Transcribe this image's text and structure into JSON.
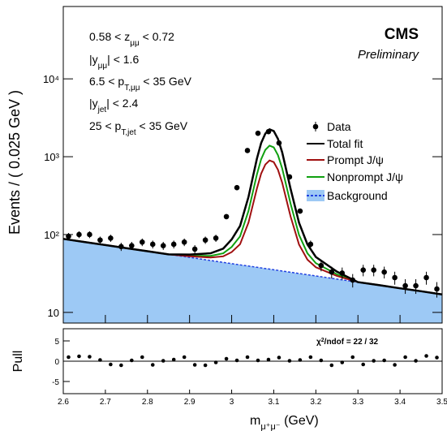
{
  "chart_data": {
    "type": "line",
    "log_y": true,
    "y_title": "Events / ( 0.025 GeV )",
    "x_title": [
      {
        "t": "m"
      },
      {
        "sub": "μ⁺μ⁻"
      },
      {
        "t": " (GeV)"
      }
    ],
    "experiment": "CMS",
    "status": "Preliminary",
    "annotations": [
      [
        {
          "t": "0.58 < z"
        },
        {
          "sub": "μμ"
        },
        {
          "t": " < 0.72"
        }
      ],
      [
        {
          "t": "|y"
        },
        {
          "sub": "μμ"
        },
        {
          "t": "| < 1.6"
        }
      ],
      [
        {
          "t": "6.5 < p"
        },
        {
          "sub": "T,μμ"
        },
        {
          "t": " < 35 GeV"
        }
      ],
      [
        {
          "t": "|y"
        },
        {
          "sub": "jet"
        },
        {
          "t": "| < 2.4"
        }
      ],
      [
        {
          "t": "25 < p"
        },
        {
          "sub": "T,jet"
        },
        {
          "t": " < 35 GeV"
        }
      ]
    ],
    "xlim": [
      2.6,
      3.5
    ],
    "xticks": [
      2.6,
      2.7,
      2.8,
      2.9,
      3,
      3.1,
      3.2,
      3.3,
      3.4,
      3.5
    ],
    "ylim": [
      7.3,
      85000
    ],
    "yticks": [
      {
        "value": 10,
        "label": "10"
      },
      {
        "value": 100,
        "label": "10²"
      },
      {
        "value": 1000,
        "label": "10³"
      },
      {
        "value": 10000,
        "label": "10⁴"
      }
    ],
    "data": {
      "name": "Data",
      "color": "#000000",
      "x": [
        2.6125,
        2.6375,
        2.6625,
        2.6875,
        2.7125,
        2.7375,
        2.7625,
        2.7875,
        2.8125,
        2.8375,
        2.8625,
        2.8875,
        2.9125,
        2.9375,
        2.9625,
        2.9875,
        3.0125,
        3.0375,
        3.0625,
        3.0875,
        3.1125,
        3.1375,
        3.1625,
        3.1875,
        3.2125,
        3.2375,
        3.2625,
        3.2875,
        3.3125,
        3.3375,
        3.3625,
        3.3875,
        3.4125,
        3.4375,
        3.4625,
        3.4875
      ],
      "values": [
        95,
        100,
        100,
        85,
        90,
        70,
        72,
        80,
        75,
        72,
        75,
        80,
        65,
        85,
        90,
        170,
        400,
        1200,
        2000,
        2100,
        1500,
        550,
        200,
        75,
        40,
        33,
        32,
        26,
        35,
        35,
        33,
        28,
        22,
        22,
        28,
        20
      ],
      "errors": [
        9.7,
        10,
        10,
        9.2,
        9.5,
        8.4,
        8.5,
        8.9,
        8.7,
        8.5,
        8.7,
        8.9,
        8.1,
        9.2,
        9.5,
        13,
        20,
        34.6,
        44.7,
        45.8,
        38.7,
        23.5,
        14.1,
        8.7,
        6.3,
        5.7,
        5.7,
        5.1,
        5.9,
        5.9,
        5.7,
        5.3,
        4.7,
        4.7,
        5.3,
        4.5
      ]
    },
    "curve_x": [
      2.6,
      2.65,
      2.7,
      2.75,
      2.8,
      2.85,
      2.9,
      2.95,
      2.98,
      3.0,
      3.02,
      3.04,
      3.06,
      3.07,
      3.08,
      3.09,
      3.1,
      3.11,
      3.12,
      3.14,
      3.16,
      3.18,
      3.2,
      3.25,
      3.3,
      3.35,
      3.4,
      3.45,
      3.5
    ],
    "series": [
      {
        "name": "Total fit",
        "color": "#000000",
        "values": [
          88,
          80.3,
          73.3,
          66.9,
          61.1,
          55.7,
          55.3,
          57.5,
          66,
          86.5,
          129.2,
          304.6,
          944.1,
          1495.9,
          1981.4,
          2246,
          2134.8,
          1692.2,
          1139,
          386.4,
          142.1,
          74.7,
          51.5,
          33.4,
          24.5,
          22.4,
          20.4,
          18.7,
          17
        ]
      },
      {
        "name": "Prompt J/ψ",
        "color": "#a01010",
        "values": [
          88,
          80.3,
          73.3,
          66.9,
          61.1,
          55.7,
          52.6,
          50.7,
          52.5,
          59.5,
          75.2,
          142.6,
          390.6,
          604.9,
          793.4,
          896,
          852.3,
          679.7,
          464,
          170.4,
          74.6,
          47.7,
          38,
          29.4,
          24.5,
          22.4,
          20.4,
          18.7,
          17
        ]
      },
      {
        "name": "Nonprompt J/ψ",
        "color": "#10a010",
        "values": [
          88,
          80.3,
          73.3,
          66.9,
          61.1,
          55.7,
          53.6,
          53.2,
          57.4,
          69.3,
          94.8,
          201.4,
          591.5,
          928.3,
          1224.6,
          1386,
          1317.8,
          1047.2,
          709,
          248.8,
          99.1,
          57.5,
          42.9,
          30.9,
          24.5,
          22.4,
          20.4,
          18.7,
          17
        ]
      },
      {
        "name": "Background",
        "color": "#2040e0",
        "fill": "#9dc9f5",
        "dashed": true,
        "values": [
          88,
          80.3,
          73.3,
          66.9,
          61.1,
          55.7,
          50.9,
          46.4,
          43.9,
          42.3,
          40.8,
          39.4,
          38,
          37.3,
          36.6,
          36,
          35.3,
          34.7,
          34,
          32.8,
          31.6,
          30.5,
          29.4,
          26.8,
          24.5,
          22.4,
          20.4,
          18.7,
          17
        ]
      }
    ],
    "pull": {
      "y_title": "Pull",
      "ylim": [
        -8,
        8
      ],
      "yticks": [
        -5,
        0,
        5
      ],
      "text": [
        {
          "t": "χ"
        },
        {
          "sup": "2"
        },
        {
          "t": "/ndof = 22 / 32"
        }
      ],
      "values": [
        1,
        1.2,
        1.1,
        0.3,
        -0.8,
        -1,
        0.2,
        1,
        -0.9,
        0.1,
        0.4,
        1,
        -0.9,
        -1,
        -0.3,
        0.6,
        0.2,
        1,
        0.2,
        0.4,
        0.9,
        0.1,
        0.3,
        1,
        0.2,
        -1,
        -0.3,
        1,
        -0.8,
        0.1,
        0.2,
        -0.9,
        1,
        0.1,
        1.3,
        0.9
      ]
    }
  }
}
